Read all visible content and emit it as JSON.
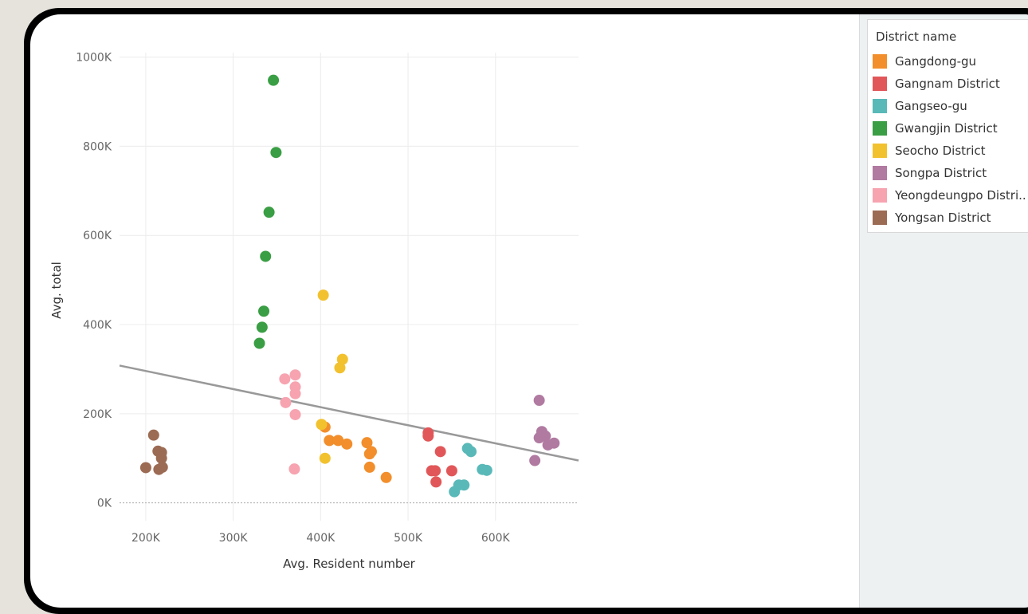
{
  "chart_data": {
    "type": "scatter",
    "xlabel": "Avg. Resident number",
    "ylabel": "Avg. total",
    "xlim": [
      170000,
      695000
    ],
    "ylim": [
      -40000,
      1010000
    ],
    "x_ticks": [
      {
        "value": 200000,
        "label": "200K"
      },
      {
        "value": 300000,
        "label": "300K"
      },
      {
        "value": 400000,
        "label": "400K"
      },
      {
        "value": 500000,
        "label": "500K"
      },
      {
        "value": 600000,
        "label": "600K"
      }
    ],
    "y_ticks": [
      {
        "value": 0,
        "label": "0K"
      },
      {
        "value": 200000,
        "label": "200K"
      },
      {
        "value": 400000,
        "label": "400K"
      },
      {
        "value": 600000,
        "label": "600K"
      },
      {
        "value": 800000,
        "label": "800K"
      },
      {
        "value": 1000000,
        "label": "1000K"
      }
    ],
    "grid": true,
    "legend": {
      "title": "District name",
      "placement": "right"
    },
    "trend_line": {
      "x": [
        170000,
        695000
      ],
      "y": [
        308000,
        95000
      ],
      "color": "#999999"
    },
    "series": [
      {
        "name": "Gangdong-gu",
        "color": "#f28e2b",
        "points": [
          [
            405000,
            170000
          ],
          [
            410000,
            140000
          ],
          [
            420000,
            140000
          ],
          [
            430000,
            132000
          ],
          [
            453000,
            135000
          ],
          [
            456000,
            110000
          ],
          [
            458000,
            115000
          ],
          [
            456000,
            80000
          ],
          [
            475000,
            57000
          ]
        ]
      },
      {
        "name": "Gangnam District",
        "color": "#e15759",
        "points": [
          [
            523000,
            157000
          ],
          [
            523000,
            150000
          ],
          [
            527000,
            72000
          ],
          [
            531000,
            72000
          ],
          [
            532000,
            47000
          ],
          [
            537000,
            115000
          ],
          [
            550000,
            72000
          ]
        ]
      },
      {
        "name": "Gangseo-gu",
        "color": "#59b9b8",
        "points": [
          [
            568000,
            122000
          ],
          [
            572000,
            115000
          ],
          [
            553000,
            25000
          ],
          [
            558000,
            40000
          ],
          [
            564000,
            40000
          ],
          [
            585000,
            75000
          ],
          [
            590000,
            73000
          ]
        ]
      },
      {
        "name": "Gwangjin District",
        "color": "#3a9e44",
        "points": [
          [
            346000,
            948000
          ],
          [
            349000,
            786000
          ],
          [
            341000,
            652000
          ],
          [
            337000,
            553000
          ],
          [
            335000,
            430000
          ],
          [
            333000,
            394000
          ],
          [
            330000,
            358000
          ]
        ]
      },
      {
        "name": "Seocho District",
        "color": "#f2c12e",
        "points": [
          [
            403000,
            466000
          ],
          [
            425000,
            322000
          ],
          [
            422000,
            303000
          ],
          [
            401000,
            176000
          ],
          [
            405000,
            100000
          ]
        ]
      },
      {
        "name": "Songpa District",
        "color": "#b07aa1",
        "points": [
          [
            650000,
            230000
          ],
          [
            653000,
            160000
          ],
          [
            650000,
            146000
          ],
          [
            657000,
            150000
          ],
          [
            660000,
            130000
          ],
          [
            667000,
            134000
          ],
          [
            645000,
            95000
          ]
        ]
      },
      {
        "name": "Yeongdeungpo Distri..",
        "color": "#f7a3b0",
        "points": [
          [
            359000,
            278000
          ],
          [
            371000,
            287000
          ],
          [
            371000,
            260000
          ],
          [
            371000,
            245000
          ],
          [
            360000,
            225000
          ],
          [
            371000,
            198000
          ],
          [
            370000,
            76000
          ]
        ]
      },
      {
        "name": "Yongsan District",
        "color": "#9c6b54",
        "points": [
          [
            209000,
            152000
          ],
          [
            214000,
            116000
          ],
          [
            218000,
            113000
          ],
          [
            218000,
            100000
          ],
          [
            215000,
            75000
          ],
          [
            219000,
            80000
          ],
          [
            200000,
            79000
          ]
        ]
      }
    ]
  }
}
